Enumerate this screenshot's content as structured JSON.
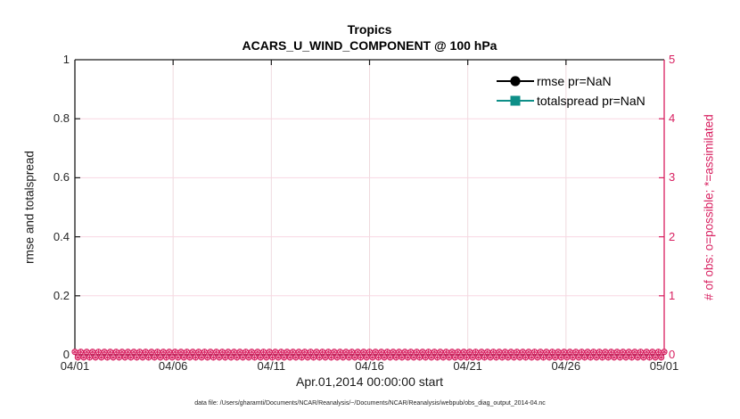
{
  "title": {
    "line1": "Tropics",
    "line2": "ACARS_U_WIND_COMPONENT @ 100 hPa"
  },
  "legend": {
    "entries": [
      {
        "label": "rmse pr=NaN",
        "color": "#000000",
        "marker": "circle"
      },
      {
        "label": "totalspread pr=NaN",
        "color": "#0e8f88",
        "marker": "square"
      }
    ]
  },
  "footer": {
    "text": "data file: /Users/gharamti/Documents/NCAR/Reanalysis/~/Documents/NCAR/Reanalysis/webpub/obs_diag_output_2014-04.nc"
  },
  "chart_data": {
    "type": "line",
    "title": "Tropics",
    "subtitle": "ACARS_U_WIND_COMPONENT @ 100 hPa",
    "xlabel": "Apr.01,2014 00:00:00 start",
    "x_tick_labels": [
      "04/01",
      "04/06",
      "04/11",
      "04/16",
      "04/21",
      "04/26",
      "05/01"
    ],
    "left_axis": {
      "label": "rmse and totalspread",
      "range": [
        0,
        1
      ],
      "tick_labels": [
        "0",
        "0.2",
        "0.4",
        "0.6",
        "0.8",
        "1"
      ],
      "color": "#1a1a1a"
    },
    "right_axis": {
      "label": "# of obs: o=possible; *=assimilated",
      "range": [
        0,
        5
      ],
      "tick_labels": [
        "0",
        "1",
        "2",
        "3",
        "4",
        "5"
      ],
      "color": "#d81e5f"
    },
    "grid": true,
    "gridline_color_horizontal": "#f8d7e2",
    "gridline_color_vertical": "#efdade",
    "legend_position": "upper right inside, no box",
    "series": [
      {
        "name": "rmse pr=NaN",
        "axis": "left",
        "marker": "circle",
        "color": "#000000",
        "values": "NaN (no curve drawn)"
      },
      {
        "name": "totalspread pr=NaN",
        "axis": "left",
        "marker": "square",
        "color": "#0e8f88",
        "values": "NaN (no curve drawn)"
      },
      {
        "name": "possible obs (o markers)",
        "axis": "right",
        "marker": "o",
        "color": "#d81e5f",
        "constant_value": 0,
        "x_span": [
          "04/01",
          "05/01"
        ],
        "note": "dense band of markers at 0 for every analysis time in April 2014"
      },
      {
        "name": "assimilated obs (* markers)",
        "axis": "right",
        "marker": "*",
        "color": "#d81e5f",
        "constant_value": 0,
        "x_span": [
          "04/01",
          "05/01"
        ],
        "note": "overplots the o markers at 0"
      }
    ]
  }
}
